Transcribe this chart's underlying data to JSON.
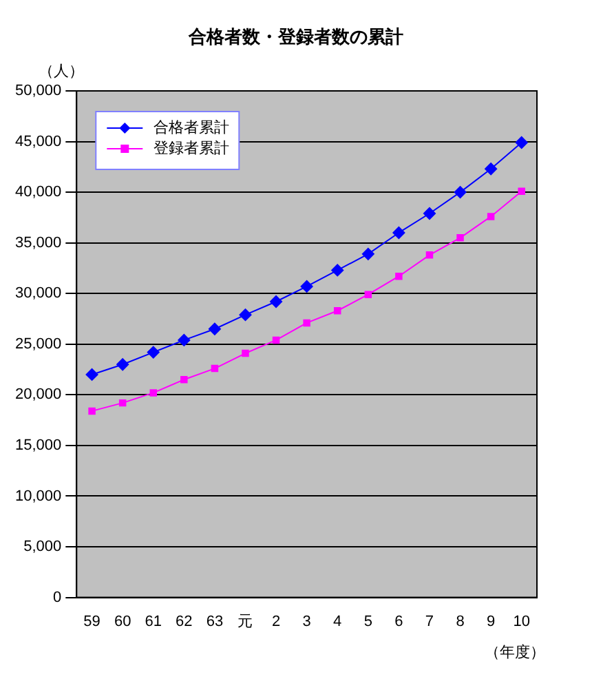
{
  "chart_data": {
    "type": "line",
    "title": "合格者数・登録者数の累計",
    "ylabel": "（人）",
    "xlabel": "（年度）",
    "categories": [
      "59",
      "60",
      "61",
      "62",
      "63",
      "元",
      "2",
      "3",
      "4",
      "5",
      "6",
      "7",
      "8",
      "9",
      "10"
    ],
    "series": [
      {
        "name": "合格者累計",
        "color": "#0000ff",
        "marker": "diamond",
        "values": [
          22000,
          23000,
          24200,
          25400,
          26500,
          27900,
          29200,
          30700,
          32300,
          33900,
          36000,
          37900,
          40000,
          42300,
          44900
        ]
      },
      {
        "name": "登録者累計",
        "color": "#ff00ff",
        "marker": "square",
        "values": [
          18400,
          19200,
          20200,
          21500,
          22600,
          24100,
          25400,
          27100,
          28300,
          29900,
          31700,
          33800,
          35500,
          37600,
          40100
        ]
      }
    ],
    "ylim": [
      0,
      50000
    ],
    "yticks": [
      0,
      {
        "value": 5000,
        "label": "5,000"
      },
      {
        "value": 10000,
        "label": "10,000"
      },
      {
        "value": 15000,
        "label": "15,000"
      },
      {
        "value": 20000,
        "label": "20,000"
      },
      {
        "value": 25000,
        "label": "25,000"
      },
      {
        "value": 30000,
        "label": "30,000"
      },
      {
        "value": 35000,
        "label": "35,000"
      },
      {
        "value": 40000,
        "label": "40,000"
      },
      {
        "value": 45000,
        "label": "45,000"
      },
      {
        "value": 50000,
        "label": "50,000"
      }
    ],
    "grid": "y",
    "legend": "top left"
  }
}
